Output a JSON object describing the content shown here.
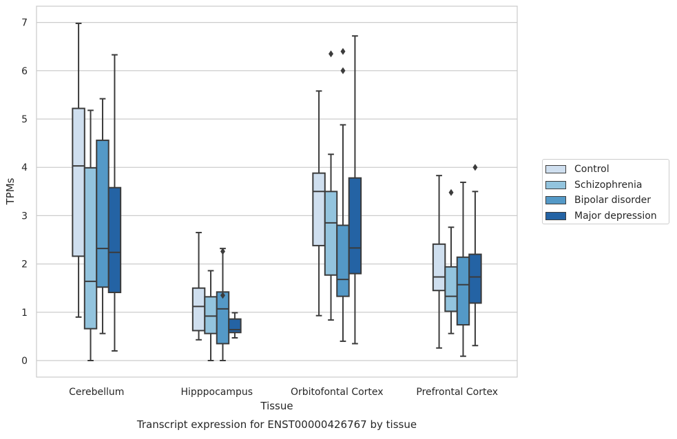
{
  "chart_data": {
    "type": "box",
    "title": "",
    "caption": "Transcript expression for ENST00000426767 by tissue",
    "xlabel": "Tissue",
    "ylabel": "TPMs",
    "ylim": [
      -0.33,
      7.35
    ],
    "yticks": [
      "0",
      "1",
      "2",
      "3",
      "4",
      "5",
      "6",
      "7"
    ],
    "grid": "horizontal",
    "legend_position": "right",
    "categories": [
      "Cerebellum",
      "Hipppocampus",
      "Orbitofontal Cortex",
      "Prefrontal Cortex"
    ],
    "series": [
      {
        "name": "Control",
        "color": "#cfdfef",
        "boxes": [
          {
            "whisker_low": 0.9,
            "q1": 2.16,
            "median": 4.03,
            "q3": 5.22,
            "whisker_high": 6.98,
            "outliers": []
          },
          {
            "whisker_low": 0.43,
            "q1": 0.62,
            "median": 1.12,
            "q3": 1.5,
            "whisker_high": 2.65,
            "outliers": []
          },
          {
            "whisker_low": 0.93,
            "q1": 2.38,
            "median": 3.5,
            "q3": 3.88,
            "whisker_high": 5.58,
            "outliers": []
          },
          {
            "whisker_low": 0.26,
            "q1": 1.45,
            "median": 1.73,
            "q3": 2.41,
            "whisker_high": 3.83,
            "outliers": []
          }
        ]
      },
      {
        "name": "Schizophrenia",
        "color": "#93c4de",
        "boxes": [
          {
            "whisker_low": 0.0,
            "q1": 0.66,
            "median": 1.64,
            "q3": 3.99,
            "whisker_high": 5.18,
            "outliers": []
          },
          {
            "whisker_low": 0.0,
            "q1": 0.56,
            "median": 0.92,
            "q3": 1.32,
            "whisker_high": 1.86,
            "outliers": []
          },
          {
            "whisker_low": 0.84,
            "q1": 1.77,
            "median": 2.85,
            "q3": 3.5,
            "whisker_high": 4.27,
            "outliers": [
              6.35
            ]
          },
          {
            "whisker_low": 0.56,
            "q1": 1.02,
            "median": 1.33,
            "q3": 1.94,
            "whisker_high": 2.76,
            "outliers": [
              3.48
            ]
          }
        ]
      },
      {
        "name": "Bipolar disorder",
        "color": "#5499c7",
        "boxes": [
          {
            "whisker_low": 0.56,
            "q1": 1.52,
            "median": 2.32,
            "q3": 4.56,
            "whisker_high": 5.42,
            "outliers": []
          },
          {
            "whisker_low": 0.0,
            "q1": 0.35,
            "median": 1.07,
            "q3": 1.42,
            "whisker_high": 2.32,
            "outliers": [
              1.35,
              2.26
            ]
          },
          {
            "whisker_low": 0.4,
            "q1": 1.33,
            "median": 1.68,
            "q3": 2.8,
            "whisker_high": 4.88,
            "outliers": [
              6.0,
              6.4
            ]
          },
          {
            "whisker_low": 0.09,
            "q1": 0.74,
            "median": 1.57,
            "q3": 2.14,
            "whisker_high": 3.69,
            "outliers": []
          }
        ]
      },
      {
        "name": "Major depression",
        "color": "#2463a4",
        "boxes": [
          {
            "whisker_low": 0.2,
            "q1": 1.41,
            "median": 2.24,
            "q3": 3.58,
            "whisker_high": 6.33,
            "outliers": []
          },
          {
            "whisker_low": 0.47,
            "q1": 0.58,
            "median": 0.64,
            "q3": 0.86,
            "whisker_high": 0.99,
            "outliers": []
          },
          {
            "whisker_low": 0.35,
            "q1": 1.8,
            "median": 2.33,
            "q3": 3.78,
            "whisker_high": 6.72,
            "outliers": []
          },
          {
            "whisker_low": 0.31,
            "q1": 1.19,
            "median": 1.73,
            "q3": 2.2,
            "whisker_high": 3.5,
            "outliers": [
              4.0
            ]
          }
        ]
      }
    ]
  }
}
